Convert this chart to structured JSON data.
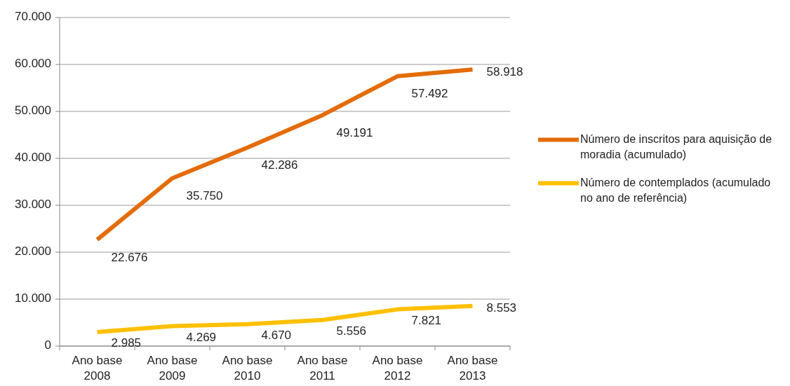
{
  "chart_data": {
    "type": "line",
    "categories": [
      "Ano base 2008",
      "Ano base 2009",
      "Ano base 2010",
      "Ano base 2011",
      "Ano base 2012",
      "Ano base 2013"
    ],
    "series": [
      {
        "name": "Número de inscritos para aquisição de moradia (acumulado)",
        "color": "#e36c09",
        "values": [
          22676,
          35750,
          42286,
          49191,
          57492,
          58918
        ],
        "value_labels": [
          "22.676",
          "35.750",
          "42.286",
          "49.191",
          "57.492",
          "58.918"
        ]
      },
      {
        "name": "Número de contemplados (acumulado no ano de referência)",
        "color": "#ffc000",
        "values": [
          2985,
          4269,
          4670,
          5556,
          7821,
          8553
        ],
        "value_labels": [
          "2.985",
          "4.269",
          "4.670",
          "5.556",
          "7.821",
          "8.553"
        ]
      }
    ],
    "ylim": [
      0,
      70000
    ],
    "yticks": [
      {
        "value": 0,
        "label": "0"
      },
      {
        "value": 10000,
        "label": "10.000"
      },
      {
        "value": 20000,
        "label": "20.000"
      },
      {
        "value": 30000,
        "label": "30.000"
      },
      {
        "value": 40000,
        "label": "40.000"
      },
      {
        "value": 50000,
        "label": "50.000"
      },
      {
        "value": 60000,
        "label": "60.000"
      },
      {
        "value": 70000,
        "label": "70.000"
      }
    ],
    "grid": "y",
    "legend": "right",
    "marker": "none",
    "line_style": "solid"
  }
}
